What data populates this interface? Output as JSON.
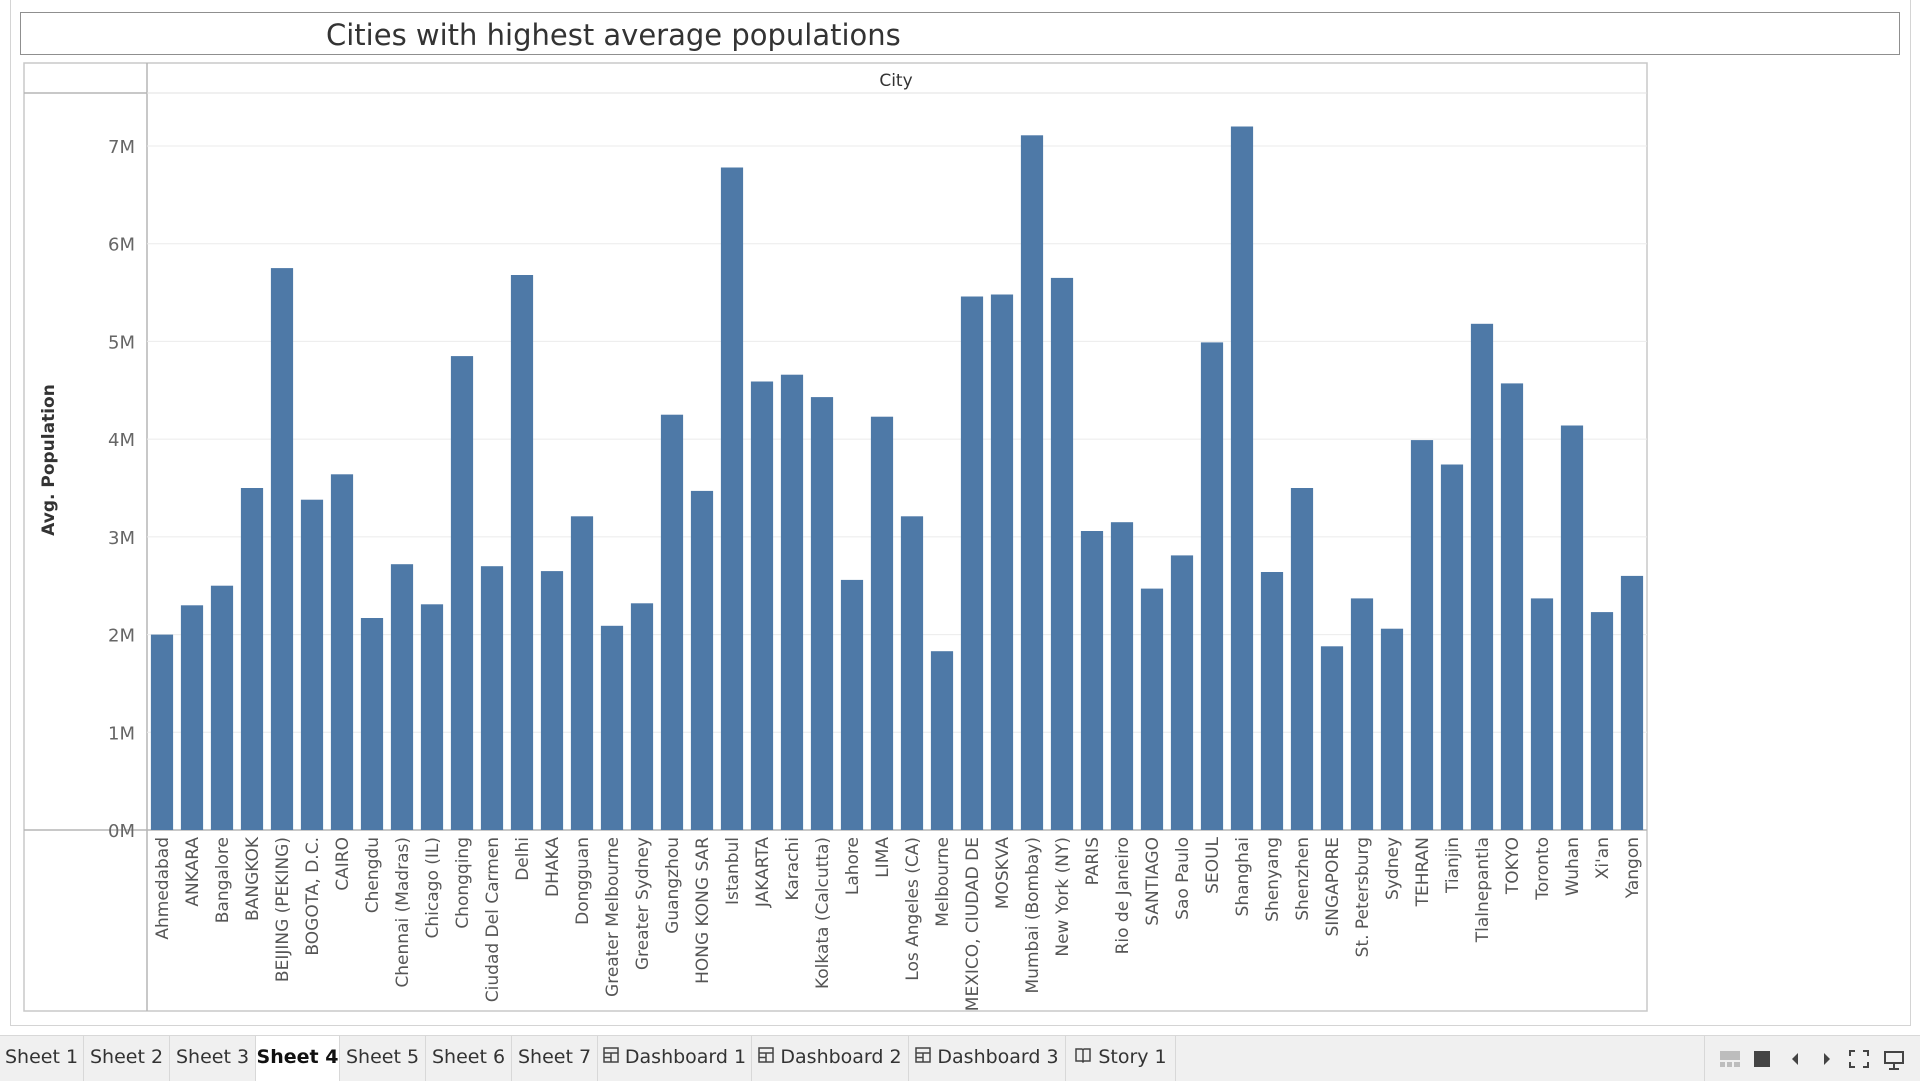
{
  "chart_title": "Cities with highest average populations",
  "tabs": [
    {
      "label": "Sheet 1",
      "type": "sheet",
      "active": false
    },
    {
      "label": "Sheet 2",
      "type": "sheet",
      "active": false
    },
    {
      "label": "Sheet 3",
      "type": "sheet",
      "active": false
    },
    {
      "label": "Sheet 4",
      "type": "sheet",
      "active": true
    },
    {
      "label": "Sheet 5",
      "type": "sheet",
      "active": false
    },
    {
      "label": "Sheet 6",
      "type": "sheet",
      "active": false
    },
    {
      "label": "Sheet 7",
      "type": "sheet",
      "active": false
    },
    {
      "label": "Dashboard 1",
      "type": "dashboard",
      "active": false
    },
    {
      "label": "Dashboard 2",
      "type": "dashboard",
      "active": false
    },
    {
      "label": "Dashboard 3",
      "type": "dashboard",
      "active": false
    },
    {
      "label": "Story 1",
      "type": "story",
      "active": false
    }
  ],
  "nav_icons": [
    "show-sheets-icon",
    "stop-icon",
    "prev-sheet-icon",
    "next-sheet-icon",
    "fullscreen-icon",
    "presentation-icon"
  ],
  "colors": {
    "bar": "#4e79a7",
    "grid": "#ebebeb",
    "axis_text": "#666666"
  },
  "chart_data": {
    "type": "bar",
    "title": "Cities with highest average populations",
    "column_header": "City",
    "xlabel": "",
    "ylabel": "Avg. Population",
    "ylim": [
      0,
      7500000
    ],
    "yticks": [
      0,
      1000000,
      2000000,
      3000000,
      4000000,
      5000000,
      6000000,
      7000000
    ],
    "ytick_labels": [
      "0M",
      "1M",
      "2M",
      "3M",
      "4M",
      "5M",
      "6M",
      "7M"
    ],
    "grid": true,
    "categories": [
      "Ahmedabad",
      "ANKARA",
      "Bangalore",
      "BANGKOK",
      "BEIJING (PEKING)",
      "BOGOTA, D.C.",
      "CAIRO",
      "Chengdu",
      "Chennai (Madras)",
      "Chicago (IL)",
      "Chongqing",
      "Ciudad Del Carmen",
      "Delhi",
      "DHAKA",
      "Dongguan",
      "Greater Melbourne",
      "Greater Sydney",
      "Guangzhou",
      "HONG KONG SAR",
      "Istanbul",
      "JAKARTA",
      "Karachi",
      "Kolkata (Calcutta)",
      "Lahore",
      "LIMA",
      "Los Angeles (CA)",
      "Melbourne",
      "MEXICO, CIUDAD DE",
      "MOSKVA",
      "Mumbai (Bombay)",
      "New York (NY)",
      "PARIS",
      "Rio de Janeiro",
      "SANTIAGO",
      "Sao Paulo",
      "SEOUL",
      "Shanghai",
      "Shenyang",
      "Shenzhen",
      "SINGAPORE",
      "St. Petersburg",
      "Sydney",
      "TEHRAN",
      "Tianjin",
      "Tlalnepantla",
      "TOKYO",
      "Toronto",
      "Wuhan",
      "Xi'an",
      "Yangon"
    ],
    "values": [
      2000000,
      2300000,
      2500000,
      3500000,
      5750000,
      3380000,
      3640000,
      2170000,
      2720000,
      2310000,
      4850000,
      2700000,
      5680000,
      2650000,
      3210000,
      2090000,
      2320000,
      4250000,
      3470000,
      6780000,
      4590000,
      4660000,
      4430000,
      2560000,
      4230000,
      3210000,
      1830000,
      5460000,
      5480000,
      7110000,
      5650000,
      3060000,
      3150000,
      2470000,
      2810000,
      4990000,
      7200000,
      2640000,
      3500000,
      1880000,
      2370000,
      2060000,
      3990000,
      3740000,
      5180000,
      4570000,
      2370000,
      4140000,
      2230000,
      2600000
    ]
  }
}
